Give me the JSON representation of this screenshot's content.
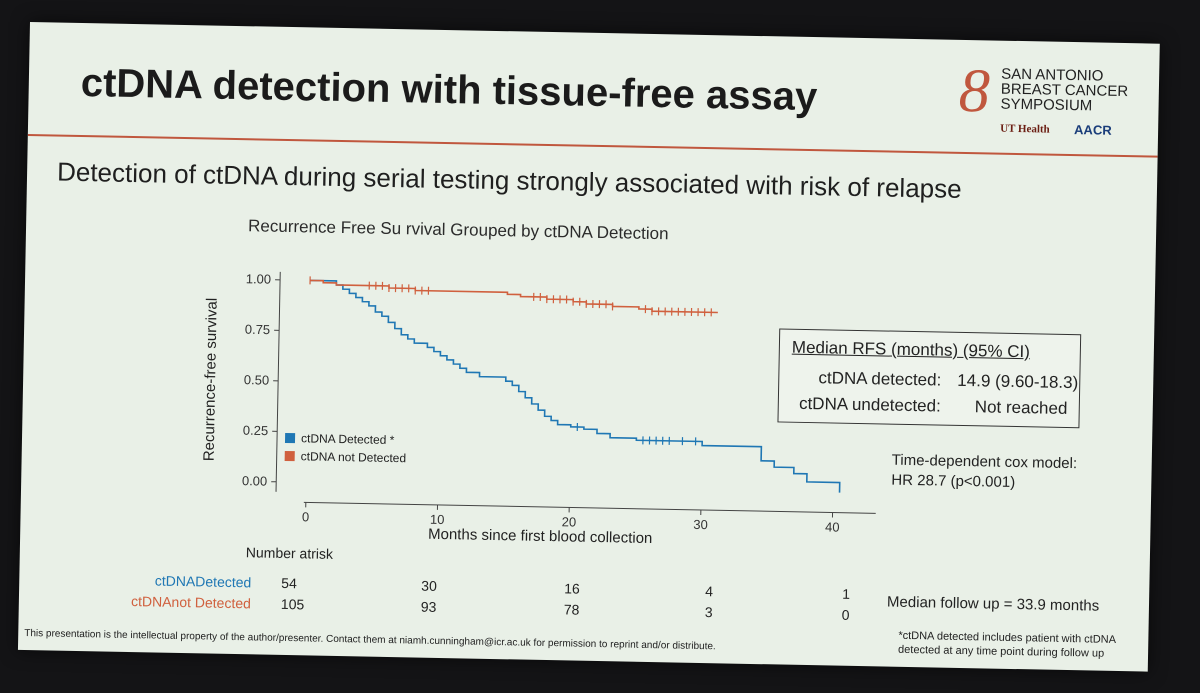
{
  "slide": {
    "title": "ctDNA detection with tissue-free assay",
    "subtitle": "Detection of ctDNA during serial testing strongly associated with risk of relapse",
    "logo": {
      "line1": "SAN ANTONIO",
      "line2": "BREAST CANCER",
      "line3": "SYMPOSIUM",
      "ut_health": "UT Health",
      "aacr": "AACR"
    },
    "median_box": {
      "heading": "Median RFS (months) (95% CI)",
      "rows": [
        {
          "label": "ctDNA detected:",
          "value": "14.9 (9.60-18.3)"
        },
        {
          "label": "ctDNA undetected:",
          "value": "Not reached"
        }
      ]
    },
    "cox": {
      "line1": "Time-dependent cox model:",
      "line2": "HR 28.7 (p<0.001)"
    },
    "risk_table": {
      "heading": "Number atrisk",
      "rows": [
        {
          "label": "ctDNADetected",
          "color": "#1f77b4",
          "values": [
            "54",
            "30",
            "16",
            "4",
            "1"
          ]
        },
        {
          "label": "ctDNAnot Detected",
          "color": "#d0603e",
          "values": [
            "105",
            "93",
            "78",
            "3",
            "0"
          ]
        }
      ]
    },
    "followup": "Median follow up = 33.9 months",
    "footnote_line1": "*ctDNA detected includes patient with ctDNA",
    "footnote_line2": "detected at any time point during follow up",
    "copyright": "This presentation is the intellectual property of the author/presenter. Contact them at niamh.cunningham@icr.ac.uk for permission to reprint and/or distribute."
  },
  "chart_data": {
    "type": "line",
    "title": "Recurrence Free Su rvival Grouped  by ctDNA Detection",
    "xlabel": "Months since first blood collection",
    "ylabel": "Recurrence-free survival",
    "xlim": [
      0,
      41
    ],
    "ylim": [
      0,
      1
    ],
    "xticks": [
      "0",
      "10",
      "20",
      "30",
      "40"
    ],
    "yticks": [
      "0.00",
      "0.25",
      "0.50",
      "0.75",
      "1.00"
    ],
    "step": true,
    "series": [
      {
        "name": "ctDNA Detected *",
        "color": "#1f77b4",
        "points": [
          [
            0,
            1.0
          ],
          [
            2,
            0.98
          ],
          [
            2.5,
            0.96
          ],
          [
            3,
            0.94
          ],
          [
            3.5,
            0.92
          ],
          [
            4,
            0.9
          ],
          [
            4.5,
            0.88
          ],
          [
            5,
            0.85
          ],
          [
            5.5,
            0.83
          ],
          [
            6,
            0.8
          ],
          [
            6.5,
            0.77
          ],
          [
            7,
            0.74
          ],
          [
            7.5,
            0.72
          ],
          [
            8,
            0.7
          ],
          [
            9,
            0.68
          ],
          [
            9.5,
            0.66
          ],
          [
            10,
            0.64
          ],
          [
            10.5,
            0.62
          ],
          [
            11,
            0.6
          ],
          [
            11.5,
            0.58
          ],
          [
            12,
            0.56
          ],
          [
            13,
            0.54
          ],
          [
            15,
            0.52
          ],
          [
            15.5,
            0.5
          ],
          [
            16,
            0.47
          ],
          [
            16.5,
            0.44
          ],
          [
            17,
            0.41
          ],
          [
            17.5,
            0.38
          ],
          [
            18,
            0.35
          ],
          [
            18.5,
            0.33
          ],
          [
            19,
            0.31
          ],
          [
            20,
            0.3
          ],
          [
            21,
            0.29
          ],
          [
            22,
            0.27
          ],
          [
            23,
            0.25
          ],
          [
            25,
            0.24
          ],
          [
            30,
            0.22
          ],
          [
            34.5,
            0.15
          ],
          [
            35.5,
            0.12
          ],
          [
            37,
            0.09
          ],
          [
            38,
            0.05
          ],
          [
            40.5,
            0.0
          ]
        ],
        "censor_x": [
          20.5,
          25.5,
          26,
          26.5,
          27,
          27.5,
          28.5,
          29.5
        ]
      },
      {
        "name": "ctDNA not Detected",
        "color": "#d0603e",
        "points": [
          [
            0,
            1.0
          ],
          [
            1,
            0.99
          ],
          [
            2,
            0.98
          ],
          [
            6,
            0.97
          ],
          [
            8,
            0.96
          ],
          [
            15,
            0.95
          ],
          [
            16,
            0.94
          ],
          [
            18,
            0.93
          ],
          [
            20,
            0.92
          ],
          [
            21,
            0.91
          ],
          [
            23,
            0.9
          ],
          [
            25,
            0.89
          ],
          [
            26,
            0.88
          ],
          [
            31,
            0.88
          ]
        ],
        "censor_x": [
          0,
          4.5,
          5,
          5.5,
          6,
          6.5,
          7,
          7.5,
          8,
          8.5,
          9,
          17,
          17.5,
          18,
          18.5,
          19,
          19.5,
          20,
          20.5,
          21,
          21.5,
          22,
          22.5,
          23,
          25.5,
          26,
          26.5,
          27,
          27.5,
          28,
          28.5,
          29,
          29.5,
          30,
          30.5
        ]
      }
    ],
    "legend": "inside lower-left"
  }
}
